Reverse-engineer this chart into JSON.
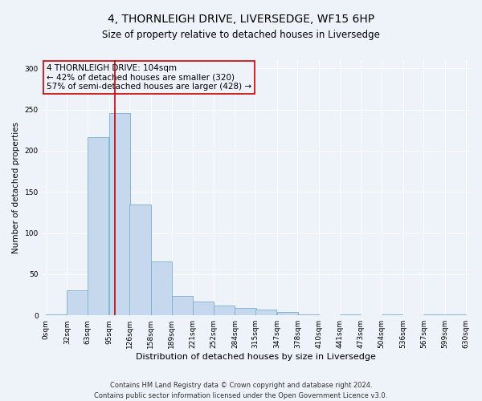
{
  "title": "4, THORNLEIGH DRIVE, LIVERSEDGE, WF15 6HP",
  "subtitle": "Size of property relative to detached houses in Liversedge",
  "xlabel": "Distribution of detached houses by size in Liversedge",
  "ylabel": "Number of detached properties",
  "footer_line1": "Contains HM Land Registry data © Crown copyright and database right 2024.",
  "footer_line2": "Contains public sector information licensed under the Open Government Licence v3.0.",
  "annotation_line1": "4 THORNLEIGH DRIVE: 104sqm",
  "annotation_line2": "← 42% of detached houses are smaller (320)",
  "annotation_line3": "57% of semi-detached houses are larger (428) →",
  "property_size": 104,
  "bar_width": 31.5,
  "bin_starts": [
    0,
    32,
    63,
    95,
    126,
    158,
    189,
    221,
    252,
    284,
    315,
    347,
    378,
    410,
    441,
    473,
    504,
    536,
    567,
    599
  ],
  "bin_labels": [
    "0sqm",
    "32sqm",
    "63sqm",
    "95sqm",
    "126sqm",
    "158sqm",
    "189sqm",
    "221sqm",
    "252sqm",
    "284sqm",
    "315sqm",
    "347sqm",
    "378sqm",
    "410sqm",
    "441sqm",
    "473sqm",
    "504sqm",
    "536sqm",
    "567sqm",
    "599sqm",
    "630sqm"
  ],
  "bar_heights": [
    1,
    30,
    216,
    246,
    135,
    65,
    24,
    17,
    12,
    9,
    7,
    4,
    1,
    0,
    1,
    0,
    1,
    0,
    1,
    1
  ],
  "bar_color": "#c5d8ed",
  "bar_edge_color": "#7bafd4",
  "background_color": "#eef3f9",
  "grid_color": "#ffffff",
  "vline_color": "#cc0000",
  "annotation_box_edge": "#cc0000",
  "ylim": [
    0,
    310
  ],
  "yticks": [
    0,
    50,
    100,
    150,
    200,
    250,
    300
  ],
  "title_fontsize": 10,
  "subtitle_fontsize": 8.5,
  "ylabel_fontsize": 7.5,
  "xlabel_fontsize": 8,
  "annotation_fontsize": 7.5,
  "tick_fontsize": 6.5,
  "footer_fontsize": 6
}
